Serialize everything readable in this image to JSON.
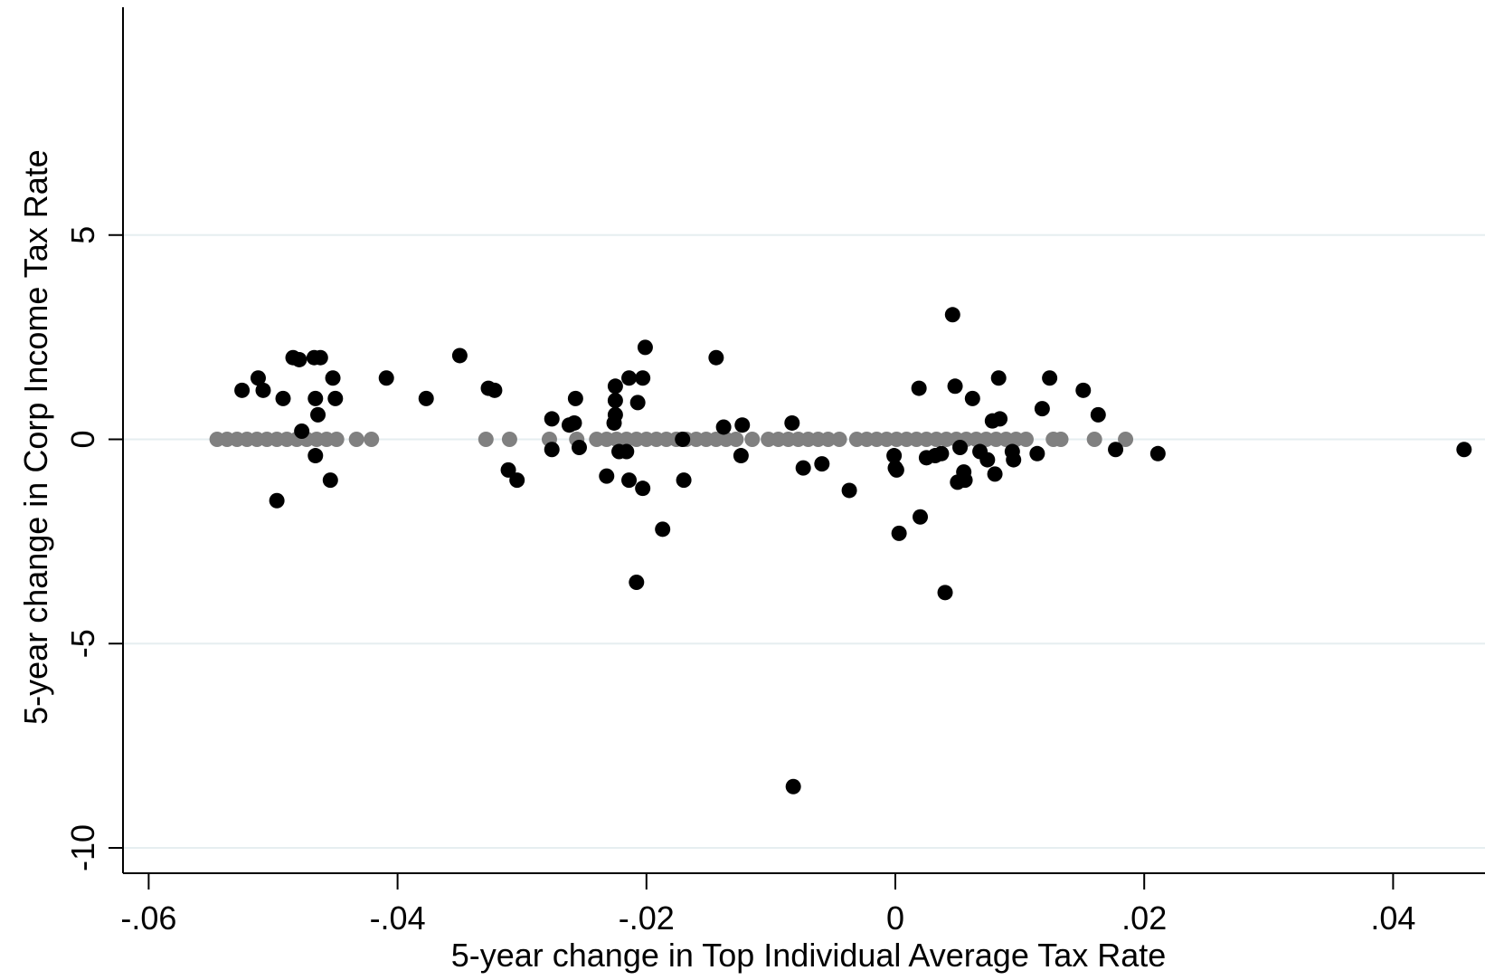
{
  "chart_data": {
    "type": "scatter",
    "title": "",
    "xlabel": "5-year change in Top Individual Average Tax Rate",
    "ylabel": "5-year change in Corp Income Tax Rate",
    "xlim": [
      -0.062,
      0.047
    ],
    "ylim": [
      -10.7,
      10.7
    ],
    "x_ticks": [
      {
        "value": -0.06,
        "label": "-.06"
      },
      {
        "value": -0.04,
        "label": "-.04"
      },
      {
        "value": -0.02,
        "label": "-.02"
      },
      {
        "value": 0,
        "label": "0"
      },
      {
        "value": 0.02,
        "label": ".02"
      },
      {
        "value": 0.04,
        "label": ".04"
      }
    ],
    "y_ticks": [
      {
        "value": 5,
        "label": "5"
      },
      {
        "value": 0,
        "label": "0"
      },
      {
        "value": -5,
        "label": "-5"
      },
      {
        "value": -10,
        "label": "-10"
      }
    ],
    "grid": "horizontal",
    "legend": "none",
    "series": [
      {
        "color": "#000000",
        "points": [
          [
            -0.0525,
            1.2
          ],
          [
            -0.0512,
            1.5
          ],
          [
            -0.0508,
            1.2
          ],
          [
            -0.0497,
            -1.5
          ],
          [
            -0.0492,
            1.0
          ],
          [
            -0.0484,
            2.0
          ],
          [
            -0.0479,
            1.95
          ],
          [
            -0.0477,
            0.2
          ],
          [
            -0.0467,
            2.0
          ],
          [
            -0.0462,
            2.0
          ],
          [
            -0.0466,
            1.0
          ],
          [
            -0.0464,
            0.6
          ],
          [
            -0.0466,
            -0.4
          ],
          [
            -0.0452,
            1.5
          ],
          [
            -0.045,
            1.0
          ],
          [
            -0.0454,
            -1.0
          ],
          [
            -0.0409,
            1.5
          ],
          [
            -0.0377,
            1.0
          ],
          [
            -0.035,
            2.05
          ],
          [
            -0.0327,
            1.25
          ],
          [
            -0.0322,
            1.2
          ],
          [
            -0.0311,
            -0.75
          ],
          [
            -0.0304,
            -1.0
          ],
          [
            -0.0276,
            0.5
          ],
          [
            -0.0276,
            -0.25
          ],
          [
            -0.0262,
            0.35
          ],
          [
            -0.0257,
            1.0
          ],
          [
            -0.0258,
            0.4
          ],
          [
            -0.0254,
            -0.2
          ],
          [
            -0.0232,
            -0.9
          ],
          [
            -0.0225,
            1.3
          ],
          [
            -0.0225,
            0.95
          ],
          [
            -0.0225,
            0.6
          ],
          [
            -0.0226,
            0.4
          ],
          [
            -0.0222,
            -0.3
          ],
          [
            -0.0216,
            -0.3
          ],
          [
            -0.0214,
            1.5
          ],
          [
            -0.0214,
            -1.0
          ],
          [
            -0.0208,
            -3.5
          ],
          [
            -0.0207,
            0.9
          ],
          [
            -0.0203,
            1.5
          ],
          [
            -0.0201,
            2.25
          ],
          [
            -0.0203,
            -1.2
          ],
          [
            -0.0187,
            -2.2
          ],
          [
            -0.0171,
            0.0
          ],
          [
            -0.017,
            -1.0
          ],
          [
            -0.0144,
            2.0
          ],
          [
            -0.0138,
            0.3
          ],
          [
            -0.0123,
            0.35
          ],
          [
            -0.0124,
            -0.4
          ],
          [
            -0.0083,
            0.4
          ],
          [
            -0.0082,
            -8.5
          ],
          [
            -0.0074,
            -0.7
          ],
          [
            -0.0059,
            -0.6
          ],
          [
            -0.0037,
            -1.25
          ],
          [
            -0.0001,
            -0.4
          ],
          [
            0.0,
            -0.7
          ],
          [
            0.0001,
            -0.75
          ],
          [
            0.0003,
            -2.3
          ],
          [
            0.0019,
            1.25
          ],
          [
            0.002,
            -1.9
          ],
          [
            0.0025,
            -0.45
          ],
          [
            0.0032,
            -0.4
          ],
          [
            0.0037,
            -0.35
          ],
          [
            0.004,
            -3.75
          ],
          [
            0.0046,
            3.05
          ],
          [
            0.0048,
            1.3
          ],
          [
            0.005,
            -1.05
          ],
          [
            0.0052,
            -0.2
          ],
          [
            0.0055,
            -0.8
          ],
          [
            0.0056,
            -1.0
          ],
          [
            0.0062,
            1.0
          ],
          [
            0.0068,
            -0.3
          ],
          [
            0.0074,
            -0.5
          ],
          [
            0.0078,
            0.45
          ],
          [
            0.008,
            -0.85
          ],
          [
            0.0083,
            1.5
          ],
          [
            0.0084,
            0.5
          ],
          [
            0.0094,
            -0.3
          ],
          [
            0.0095,
            -0.5
          ],
          [
            0.0114,
            -0.35
          ],
          [
            0.0118,
            0.75
          ],
          [
            0.0124,
            1.5
          ],
          [
            0.0151,
            1.2
          ],
          [
            0.0163,
            0.6
          ],
          [
            0.0177,
            -0.25
          ],
          [
            0.0211,
            -0.35
          ],
          [
            0.0457,
            -0.25
          ]
        ]
      },
      {
        "color": "#808080",
        "points": [
          [
            -0.0545,
            0
          ],
          [
            -0.0537,
            0
          ],
          [
            -0.0529,
            0
          ],
          [
            -0.0521,
            0
          ],
          [
            -0.0513,
            0
          ],
          [
            -0.0505,
            0
          ],
          [
            -0.0497,
            0
          ],
          [
            -0.0489,
            0
          ],
          [
            -0.0481,
            0
          ],
          [
            -0.0473,
            0
          ],
          [
            -0.0465,
            0
          ],
          [
            -0.0457,
            0
          ],
          [
            -0.0449,
            0
          ],
          [
            -0.0433,
            0
          ],
          [
            -0.0421,
            0
          ],
          [
            -0.0329,
            0
          ],
          [
            -0.031,
            0
          ],
          [
            -0.0278,
            0
          ],
          [
            -0.0256,
            0
          ],
          [
            -0.024,
            0
          ],
          [
            -0.0232,
            0
          ],
          [
            -0.0224,
            0
          ],
          [
            -0.0216,
            0
          ],
          [
            -0.0208,
            0
          ],
          [
            -0.02,
            0
          ],
          [
            -0.0192,
            0
          ],
          [
            -0.0184,
            0
          ],
          [
            -0.0176,
            0
          ],
          [
            -0.0168,
            0
          ],
          [
            -0.016,
            0
          ],
          [
            -0.0152,
            0
          ],
          [
            -0.0144,
            0
          ],
          [
            -0.0136,
            0
          ],
          [
            -0.0128,
            0
          ],
          [
            -0.0115,
            0
          ],
          [
            -0.0102,
            0
          ],
          [
            -0.0094,
            0
          ],
          [
            -0.0086,
            0
          ],
          [
            -0.0078,
            0
          ],
          [
            -0.007,
            0
          ],
          [
            -0.0062,
            0
          ],
          [
            -0.0054,
            0
          ],
          [
            -0.0045,
            0
          ],
          [
            -0.0031,
            0
          ],
          [
            -0.0023,
            0
          ],
          [
            -0.0015,
            0
          ],
          [
            -0.0007,
            0
          ],
          [
            0.0001,
            0
          ],
          [
            0.0009,
            0
          ],
          [
            0.0017,
            0
          ],
          [
            0.0025,
            0
          ],
          [
            0.0033,
            0
          ],
          [
            0.0041,
            0
          ],
          [
            0.0049,
            0
          ],
          [
            0.0057,
            0
          ],
          [
            0.0065,
            0
          ],
          [
            0.0073,
            0
          ],
          [
            0.0081,
            0
          ],
          [
            0.0089,
            0
          ],
          [
            0.0097,
            0
          ],
          [
            0.0105,
            0
          ],
          [
            0.0127,
            0
          ],
          [
            0.0133,
            0
          ],
          [
            0.016,
            0
          ],
          [
            0.0185,
            0
          ]
        ]
      }
    ]
  }
}
